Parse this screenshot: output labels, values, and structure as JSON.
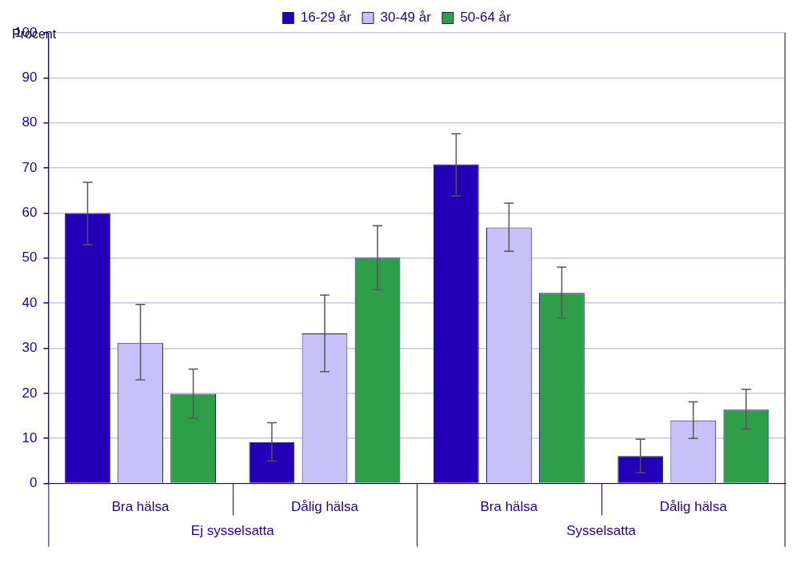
{
  "chart_data": {
    "type": "bar",
    "y_label": "Procent",
    "categories": [
      "Bra hälsa",
      "Dålig hälsa",
      "Bra hälsa",
      "Dålig hälsa"
    ],
    "category_groups": [
      "Ej sysselsatta",
      "Ej sysselsatta",
      "Sysselsatta",
      "Sysselsatta"
    ],
    "series": [
      {
        "name": "16-29 år",
        "color": "#2200b8",
        "values": [
          60.0,
          9.2,
          70.8,
          6.1
        ],
        "error_low": [
          53.0,
          5.0,
          63.8,
          2.4
        ],
        "error_high": [
          66.8,
          13.5,
          77.6,
          9.8
        ]
      },
      {
        "name": "30-49 år",
        "color": "#c8c0f8",
        "values": [
          31.2,
          33.3,
          56.8,
          14.0
        ],
        "error_low": [
          23.0,
          24.8,
          51.5,
          10.0
        ],
        "error_high": [
          39.7,
          41.8,
          62.2,
          18.1
        ]
      },
      {
        "name": "50-64 år",
        "color": "#2e9e48",
        "values": [
          19.9,
          50.1,
          42.3,
          16.4
        ],
        "error_low": [
          14.5,
          43.0,
          36.7,
          12.1
        ],
        "error_high": [
          25.4,
          57.2,
          48.0,
          20.9
        ]
      }
    ],
    "ylim": [
      0,
      100
    ],
    "yticks": [
      0,
      10,
      20,
      30,
      40,
      50,
      60,
      70,
      80,
      90,
      100
    ],
    "grid": true,
    "legend": "top"
  }
}
